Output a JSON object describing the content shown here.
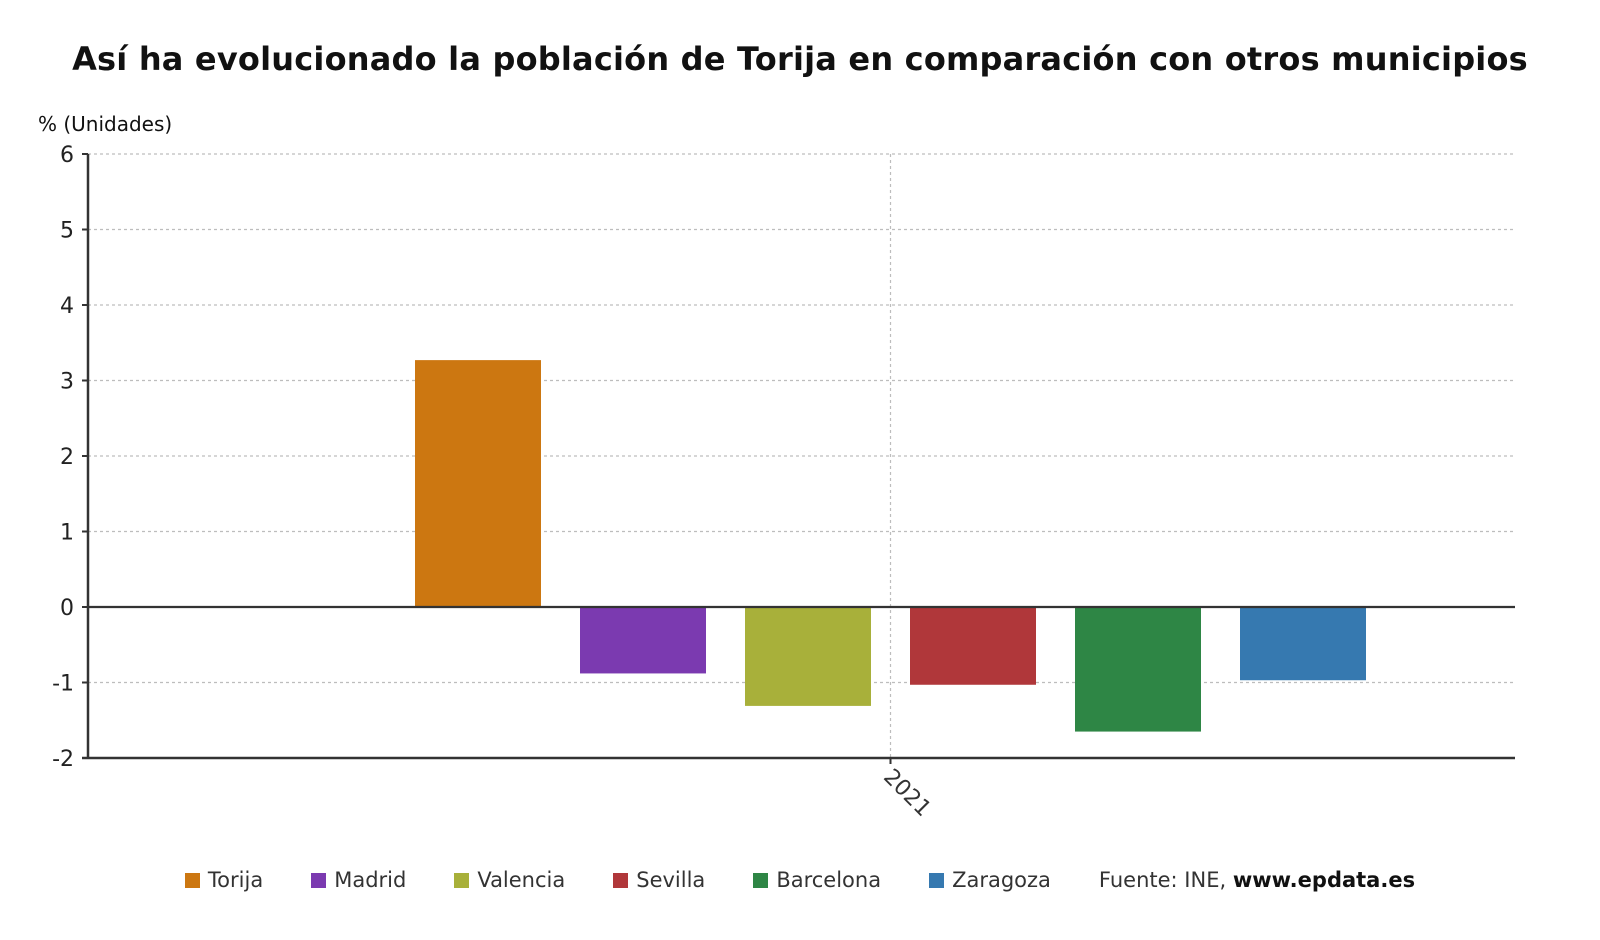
{
  "title": "Así ha evolucionado la población de Torija en comparación con otros municipios",
  "y_unit_label": "% (Unidades)",
  "chart_data": {
    "type": "bar",
    "title": "Así ha evolucionado la población de Torija en comparación con otros municipios",
    "ylabel": "% (Unidades)",
    "xlabel": "",
    "categories": [
      "2021"
    ],
    "ylim": [
      -2,
      6
    ],
    "yticks": [
      "6",
      "5",
      "4",
      "3",
      "2",
      "1",
      "0",
      "-1",
      "-2"
    ],
    "ytick_values": [
      6,
      5,
      4,
      3,
      2,
      1,
      0,
      -1,
      -2
    ],
    "grid": true,
    "legend_position": "bottom",
    "series": [
      {
        "name": "Torija",
        "color": "#cc7711",
        "values": [
          3.27
        ]
      },
      {
        "name": "Madrid",
        "color": "#7b3ab0",
        "values": [
          -0.88
        ]
      },
      {
        "name": "Valencia",
        "color": "#a8b03a",
        "values": [
          -1.31
        ]
      },
      {
        "name": "Sevilla",
        "color": "#b0373a",
        "values": [
          -1.03
        ]
      },
      {
        "name": "Barcelona",
        "color": "#2e8645",
        "values": [
          -1.65
        ]
      },
      {
        "name": "Zaragoza",
        "color": "#3679b0",
        "values": [
          -0.97
        ]
      }
    ]
  },
  "legend": {
    "items": [
      {
        "label": "Torija",
        "color": "#cc7711"
      },
      {
        "label": "Madrid",
        "color": "#7b3ab0"
      },
      {
        "label": "Valencia",
        "color": "#a8b03a"
      },
      {
        "label": "Sevilla",
        "color": "#b0373a"
      },
      {
        "label": "Barcelona",
        "color": "#2e8645"
      },
      {
        "label": "Zaragoza",
        "color": "#3679b0"
      }
    ],
    "source_prefix": "Fuente: INE, ",
    "source_site": "www.epdata.es"
  }
}
